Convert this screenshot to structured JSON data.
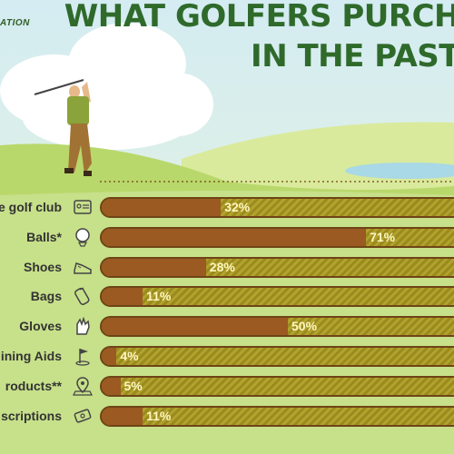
{
  "title_line1": "WHAT GOLFERS PURCH",
  "title_line2": "IN THE PAST",
  "logo_text": "ATION",
  "chart_data": {
    "type": "bar",
    "orientation": "horizontal",
    "title": "WHAT GOLFERS PURCH IN THE PAST",
    "categories": [
      "e golf club",
      "Balls*",
      "Shoes",
      "Bags",
      "Gloves",
      "ining Aids",
      "roducts**",
      "scriptions"
    ],
    "values": [
      32,
      71,
      28,
      11,
      50,
      4,
      5,
      11
    ],
    "value_labels": [
      "32%",
      "71%",
      "28%",
      "11%",
      "50%",
      "4%",
      "5%",
      "11%"
    ],
    "xlim": [
      0,
      100
    ],
    "unit": "%",
    "grid": false,
    "legend": "none",
    "colors": {
      "fill": "#9a5a21",
      "remainder": "#a69527",
      "border": "#6e4416",
      "title": "#2f6a2b",
      "label": "#333333"
    }
  },
  "icons": [
    "id-card-icon",
    "golf-ball-icon",
    "shoe-icon",
    "bag-icon",
    "glove-icon",
    "flag-icon",
    "map-pin-icon",
    "ticket-icon"
  ]
}
